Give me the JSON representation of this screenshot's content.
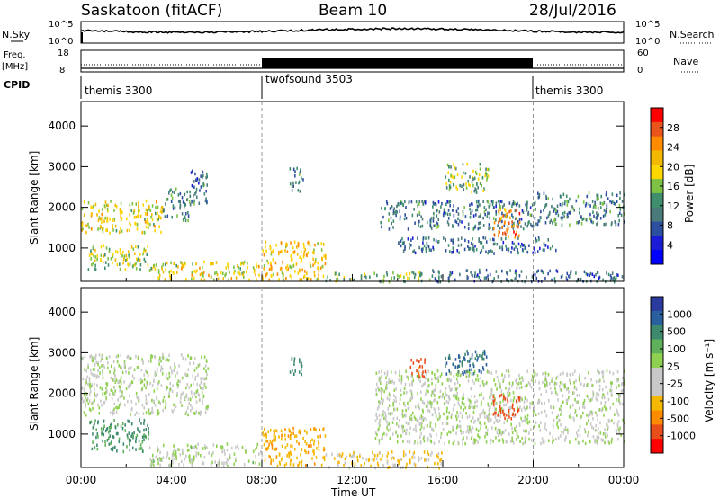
{
  "header": {
    "station": "Saskatoon (fitACF)",
    "beam": "Beam 10",
    "date": "28/Jul/2016"
  },
  "side_labels": {
    "nsky": "N.Sky",
    "nsearch": "N.Search",
    "freq_line1": "Freq.",
    "freq_line2": "[MHz]",
    "nave": "Nave",
    "cpid": "CPID"
  },
  "noise_axis": {
    "top_left": "10^5",
    "bottom_left": "10^0",
    "top_right": "10^5",
    "bottom_right": "10^0"
  },
  "freq_axis": {
    "top_left": "18",
    "bottom_left": "8",
    "top_right": "60",
    "bottom_right": "0"
  },
  "cpid_segments": [
    {
      "label": "themis 3300",
      "start_h": 0,
      "end_h": 8
    },
    {
      "label": "twofsound 3503",
      "start_h": 8,
      "end_h": 20
    },
    {
      "label": "themis 3300",
      "start_h": 20,
      "end_h": 24
    }
  ],
  "power_colorbar": {
    "label": "Power [dB]",
    "ticks": [
      "28",
      "24",
      "20",
      "16",
      "12",
      "8",
      "4"
    ],
    "colors": [
      "#ff0000",
      "#e9541a",
      "#ff8c00",
      "#f5b800",
      "#ffd700",
      "#7dc242",
      "#3f8f6f",
      "#4a7a7a",
      "#2d4f9f",
      "#1b1bd8",
      "#0000ff"
    ]
  },
  "velocity_colorbar": {
    "label": "Velocity [m s⁻¹]",
    "ticks": [
      "1000",
      "500",
      "100",
      "25",
      "-25",
      "-100",
      "-500",
      "-1000"
    ],
    "colors": [
      "#2a3a9f",
      "#2a5f9f",
      "#3e8a6e",
      "#5fb05a",
      "#8fd050",
      "#c8c8c8",
      "#c8c8c8",
      "#f5b800",
      "#ff8c00",
      "#e94e1a",
      "#ff0000"
    ]
  },
  "chart_data": {
    "type": "heatmap",
    "x_label": "Time UT",
    "x_ticks": [
      "00:00",
      "04:00",
      "08:00",
      "12:00",
      "16:00",
      "20:00",
      "00:00"
    ],
    "x_range_hours": [
      0,
      24
    ],
    "y_label": "Slant Range [km]",
    "y_ticks": [
      "1000",
      "2000",
      "3000",
      "4000"
    ],
    "y_range_km": [
      180,
      4600
    ],
    "grid": false,
    "power_blobs": [
      {
        "t0": 0.0,
        "t1": 3.6,
        "r0": 1400,
        "r1": 2200,
        "db": 18
      },
      {
        "t0": 3.6,
        "t1": 4.8,
        "r0": 1700,
        "r1": 2500,
        "db": 10
      },
      {
        "t0": 4.8,
        "t1": 5.6,
        "r0": 2100,
        "r1": 3000,
        "db": 9
      },
      {
        "t0": 0.3,
        "t1": 3.0,
        "r0": 500,
        "r1": 1100,
        "db": 16
      },
      {
        "t0": 3.0,
        "t1": 8.0,
        "r0": 250,
        "r1": 700,
        "db": 18
      },
      {
        "t0": 8.0,
        "t1": 10.8,
        "r0": 250,
        "r1": 1200,
        "db": 20
      },
      {
        "t0": 10.8,
        "t1": 15.5,
        "r0": 200,
        "r1": 450,
        "db": 14
      },
      {
        "t0": 9.2,
        "t1": 9.8,
        "r0": 2400,
        "r1": 3000,
        "db": 10
      },
      {
        "t0": 13.2,
        "t1": 20.0,
        "r0": 1500,
        "r1": 2200,
        "db": 9
      },
      {
        "t0": 14.0,
        "t1": 21.0,
        "r0": 900,
        "r1": 1300,
        "db": 8
      },
      {
        "t0": 16.0,
        "t1": 18.0,
        "r0": 2400,
        "r1": 3100,
        "db": 14
      },
      {
        "t0": 18.2,
        "t1": 19.4,
        "r0": 1300,
        "r1": 2000,
        "db": 24
      },
      {
        "t0": 20.0,
        "t1": 24.0,
        "r0": 1600,
        "r1": 2400,
        "db": 10
      },
      {
        "t0": 15.5,
        "t1": 24.0,
        "r0": 200,
        "r1": 500,
        "db": 8
      }
    ],
    "velocity_blobs": [
      {
        "t0": 0.0,
        "t1": 5.6,
        "r0": 1500,
        "r1": 3000,
        "v": 0
      },
      {
        "t0": 0.3,
        "t1": 3.0,
        "r0": 600,
        "r1": 1400,
        "v": 200
      },
      {
        "t0": 3.0,
        "t1": 8.0,
        "r0": 250,
        "r1": 800,
        "v": 10
      },
      {
        "t0": 8.0,
        "t1": 10.8,
        "r0": 250,
        "r1": 1200,
        "v": -150
      },
      {
        "t0": 10.8,
        "t1": 16.0,
        "r0": 200,
        "r1": 600,
        "v": -80
      },
      {
        "t0": 13.0,
        "t1": 24.0,
        "r0": 800,
        "r1": 2600,
        "v": 0
      },
      {
        "t0": 14.5,
        "t1": 15.2,
        "r0": 2400,
        "r1": 2900,
        "v": -400
      },
      {
        "t0": 16.0,
        "t1": 18.0,
        "r0": 2500,
        "r1": 3100,
        "v": 400
      },
      {
        "t0": 18.2,
        "t1": 19.4,
        "r0": 1400,
        "r1": 2000,
        "v": -600
      },
      {
        "t0": 9.2,
        "t1": 9.8,
        "r0": 2500,
        "r1": 3000,
        "v": 300
      }
    ],
    "vertical_markers_h": [
      8,
      20
    ]
  }
}
